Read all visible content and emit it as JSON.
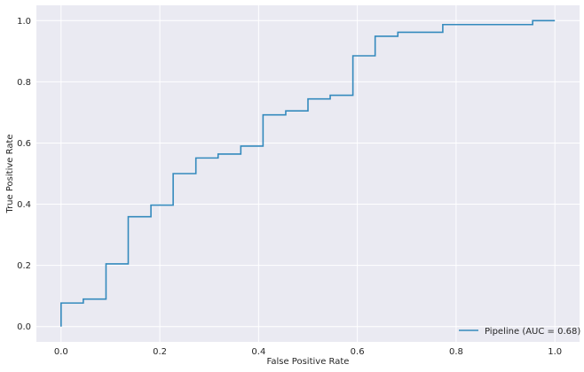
{
  "chart_data": {
    "type": "line",
    "xlabel": "False Positive Rate",
    "ylabel": "True Positive Rate",
    "xlim": [
      -0.05,
      1.05
    ],
    "ylim": [
      -0.05,
      1.05
    ],
    "xticks": [
      0.0,
      0.2,
      0.4,
      0.6,
      0.8,
      1.0
    ],
    "yticks": [
      0.0,
      0.2,
      0.4,
      0.6,
      0.8,
      1.0
    ],
    "xtick_labels": [
      "0.0",
      "0.2",
      "0.4",
      "0.6",
      "0.8",
      "1.0"
    ],
    "ytick_labels": [
      "0.0",
      "0.2",
      "0.4",
      "0.6",
      "0.8",
      "1.0"
    ],
    "grid": true,
    "legend_position": "bottom-right",
    "series": [
      {
        "name": "Pipeline (AUC = 0.68)",
        "color": "#348ABD",
        "x": [
          0.0,
          0.0,
          0.045,
          0.045,
          0.091,
          0.091,
          0.136,
          0.136,
          0.182,
          0.182,
          0.227,
          0.227,
          0.273,
          0.273,
          0.318,
          0.318,
          0.364,
          0.364,
          0.409,
          0.409,
          0.455,
          0.455,
          0.5,
          0.5,
          0.545,
          0.545,
          0.591,
          0.591,
          0.636,
          0.636,
          0.682,
          0.682,
          0.773,
          0.773,
          0.955,
          0.955,
          1.0
        ],
        "y": [
          0.0,
          0.077,
          0.077,
          0.09,
          0.09,
          0.205,
          0.205,
          0.359,
          0.359,
          0.397,
          0.397,
          0.5,
          0.5,
          0.551,
          0.551,
          0.564,
          0.564,
          0.59,
          0.59,
          0.692,
          0.692,
          0.705,
          0.705,
          0.744,
          0.744,
          0.756,
          0.756,
          0.885,
          0.885,
          0.949,
          0.949,
          0.962,
          0.962,
          0.987,
          0.987,
          1.0,
          1.0
        ]
      }
    ]
  }
}
